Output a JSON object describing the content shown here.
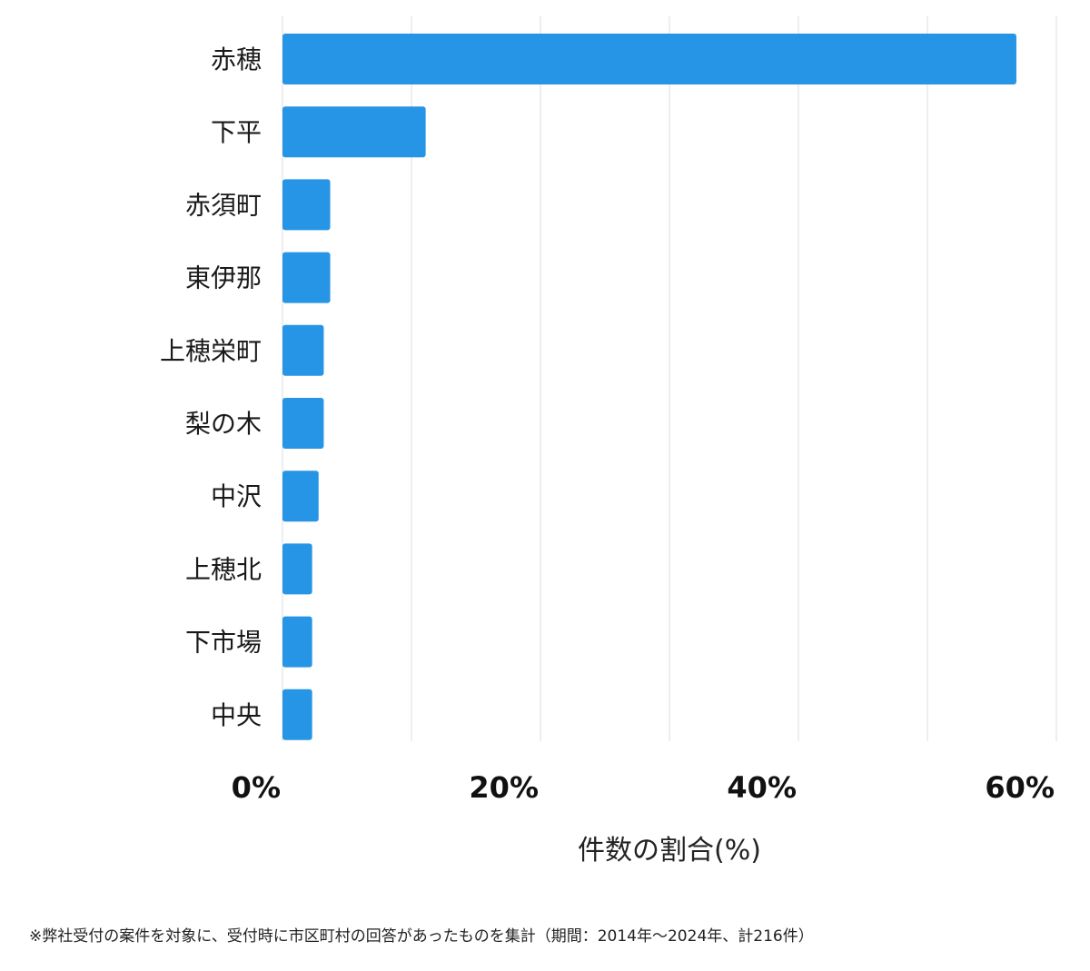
{
  "chart_data": {
    "type": "bar",
    "orientation": "horizontal",
    "categories": [
      "赤穂",
      "下平",
      "赤須町",
      "東伊那",
      "上穂栄町",
      "梨の木",
      "中沢",
      "上穂北",
      "下市場",
      "中央"
    ],
    "values": [
      56.9,
      11.1,
      3.7,
      3.7,
      3.2,
      3.2,
      2.8,
      2.3,
      2.3,
      2.3
    ],
    "xlim": [
      0,
      60
    ],
    "xticks": [
      "0%",
      "20%",
      "40%",
      "60%"
    ],
    "xtick_values": [
      0,
      20,
      40,
      60
    ],
    "xlabel": "件数の割合(%)",
    "grid": true,
    "bar_color": "#2795e6",
    "grid_color": "#dcdcdc"
  },
  "footnote": "※弊社受付の案件を対象に、受付時に市区町村の回答があったものを集計（期間：2014年〜2024年、計216件）"
}
